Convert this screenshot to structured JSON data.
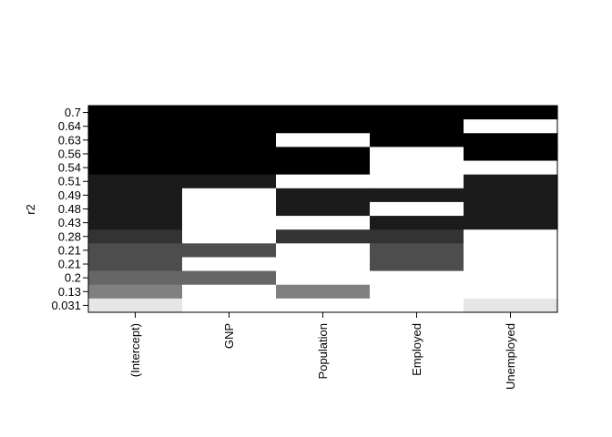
{
  "chart_data": {
    "type": "heatmap",
    "title": "",
    "xlabel": "",
    "ylabel": "r2",
    "x_labels": [
      "(Intercept)",
      "GNP",
      "Population",
      "Employed",
      "Unemployed"
    ],
    "y_labels": [
      "0.7",
      "0.64",
      "0.63",
      "0.56",
      "0.54",
      "0.51",
      "0.49",
      "0.48",
      "0.43",
      "0.28",
      "0.21",
      "0.21",
      "0.2",
      "0.13",
      "0.031"
    ],
    "matrix": [
      [
        1,
        1,
        1,
        1,
        1
      ],
      [
        1,
        1,
        1,
        1,
        0
      ],
      [
        1,
        1,
        0,
        1,
        1
      ],
      [
        1,
        1,
        1,
        0,
        1
      ],
      [
        1,
        1,
        1,
        0,
        0
      ],
      [
        1,
        1,
        0,
        0,
        1
      ],
      [
        1,
        0,
        1,
        1,
        1
      ],
      [
        1,
        0,
        1,
        0,
        1
      ],
      [
        1,
        0,
        0,
        1,
        1
      ],
      [
        1,
        0,
        1,
        1,
        0
      ],
      [
        1,
        1,
        0,
        1,
        0
      ],
      [
        1,
        0,
        0,
        1,
        0
      ],
      [
        1,
        1,
        0,
        0,
        0
      ],
      [
        1,
        0,
        1,
        0,
        0
      ],
      [
        1,
        0,
        0,
        0,
        1
      ]
    ],
    "colors": {
      "0.7": "#000000",
      "0.64": "#000000",
      "0.63": "#000000",
      "0.56": "#000000",
      "0.54": "#000000",
      "0.51": "#1b1b1b",
      "0.49": "#1b1b1b",
      "0.48": "#1b1b1b",
      "0.43": "#1b1b1b",
      "0.28": "#333333",
      "0.21": "#4d4d4d",
      "0.2": "#666666",
      "0.13": "#808080",
      "0.031": "#e6e6e6"
    },
    "empty_color": "#ffffff",
    "grid": false
  }
}
